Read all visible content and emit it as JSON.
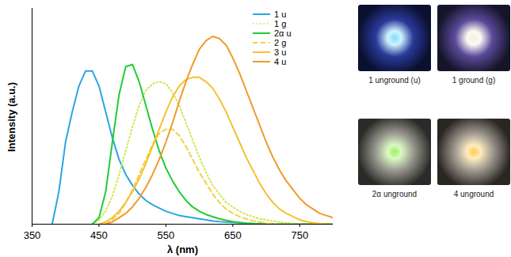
{
  "chart_data": {
    "type": "line",
    "x_label": "λ (nm)",
    "y_label": "Intensity (a.u.)",
    "xlim": [
      350,
      800
    ],
    "xticks": [
      350,
      450,
      550,
      650,
      750
    ],
    "ylim": [
      0,
      1
    ],
    "tick_labels": "x",
    "grid": false,
    "legend": "top-right",
    "x": [
      380,
      390,
      400,
      410,
      420,
      430,
      440,
      450,
      460,
      470,
      480,
      490,
      500,
      510,
      520,
      530,
      540,
      550,
      560,
      570,
      580,
      590,
      600,
      610,
      620,
      630,
      640,
      650,
      660,
      670,
      680,
      690,
      700,
      710,
      720,
      730,
      740,
      750,
      760,
      770,
      780,
      790,
      800
    ],
    "series": [
      {
        "name": "1 u",
        "color": "#2aa6df",
        "line_style": "solid",
        "values": [
          0,
          0.15,
          0.38,
          0.52,
          0.64,
          0.71,
          0.71,
          0.64,
          0.52,
          0.4,
          0.3,
          0.23,
          0.18,
          0.14,
          0.11,
          0.09,
          0.075,
          0.06,
          0.05,
          0.04,
          0.035,
          0.03,
          0.025,
          0.02,
          0.015,
          0.012,
          0.01,
          0.008,
          0.006,
          0.004,
          0.003,
          0.002,
          0.001,
          0,
          0,
          0,
          0,
          0,
          0,
          0,
          0,
          0,
          0
        ]
      },
      {
        "name": "1 g",
        "color": "#cfe94a",
        "line_style": "dotted",
        "values": [
          null,
          null,
          null,
          null,
          null,
          null,
          0,
          0.02,
          0.06,
          0.13,
          0.23,
          0.34,
          0.45,
          0.55,
          0.62,
          0.65,
          0.66,
          0.65,
          0.61,
          0.55,
          0.47,
          0.39,
          0.31,
          0.24,
          0.18,
          0.14,
          0.1,
          0.08,
          0.06,
          0.045,
          0.035,
          0.025,
          0.02,
          0.015,
          0.01,
          0.006,
          0.003,
          0.001,
          0,
          0,
          0,
          0,
          0
        ]
      },
      {
        "name": "2α u",
        "color": "#22cc33",
        "line_style": "solid",
        "values": [
          null,
          null,
          null,
          null,
          null,
          null,
          0,
          0.03,
          0.15,
          0.38,
          0.6,
          0.73,
          0.74,
          0.66,
          0.55,
          0.44,
          0.34,
          0.26,
          0.2,
          0.15,
          0.11,
          0.08,
          0.06,
          0.045,
          0.035,
          0.025,
          0.018,
          0.012,
          0.008,
          0.005,
          0.003,
          0.002,
          0.001,
          0,
          0,
          0,
          0,
          0,
          0,
          0,
          0,
          0,
          0
        ]
      },
      {
        "name": "2 g",
        "color": "#f2d04a",
        "line_style": "dashed",
        "values": [
          null,
          null,
          null,
          null,
          null,
          null,
          null,
          null,
          0,
          0.02,
          0.05,
          0.1,
          0.16,
          0.23,
          0.3,
          0.37,
          0.42,
          0.44,
          0.44,
          0.41,
          0.36,
          0.3,
          0.24,
          0.19,
          0.14,
          0.1,
          0.07,
          0.05,
          0.035,
          0.025,
          0.015,
          0.01,
          0.005,
          0.002,
          0,
          0,
          0,
          0,
          0,
          0,
          0,
          0,
          0
        ]
      },
      {
        "name": "3 u",
        "color": "#f6c030",
        "line_style": "solid",
        "values": [
          null,
          null,
          null,
          null,
          null,
          null,
          null,
          0,
          0.01,
          0.03,
          0.06,
          0.1,
          0.15,
          0.21,
          0.28,
          0.36,
          0.44,
          0.52,
          0.59,
          0.64,
          0.67,
          0.68,
          0.68,
          0.66,
          0.63,
          0.58,
          0.52,
          0.45,
          0.38,
          0.31,
          0.25,
          0.19,
          0.14,
          0.1,
          0.07,
          0.05,
          0.035,
          0.02,
          0.012,
          0.006,
          0.003,
          0.001,
          0
        ]
      },
      {
        "name": "4 u",
        "color": "#f19a2a",
        "line_style": "solid",
        "values": [
          null,
          null,
          null,
          null,
          null,
          null,
          null,
          null,
          0,
          0.01,
          0.03,
          0.05,
          0.08,
          0.12,
          0.17,
          0.23,
          0.3,
          0.38,
          0.47,
          0.57,
          0.66,
          0.74,
          0.81,
          0.85,
          0.87,
          0.86,
          0.83,
          0.77,
          0.7,
          0.62,
          0.54,
          0.46,
          0.38,
          0.31,
          0.25,
          0.2,
          0.16,
          0.12,
          0.09,
          0.07,
          0.05,
          0.04,
          0.03
        ]
      }
    ]
  },
  "photos": [
    {
      "caption": "1 unground (u)"
    },
    {
      "caption": "1 ground (g)"
    },
    {
      "caption": "2α unground"
    },
    {
      "caption": "4 unground"
    }
  ]
}
